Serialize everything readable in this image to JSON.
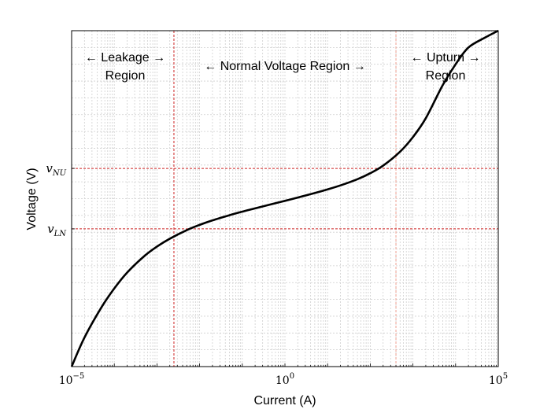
{
  "chart_data": {
    "type": "line",
    "title": "",
    "xlabel": "Current (A)",
    "ylabel": "Voltage (V)",
    "x_scale": "log",
    "xlim": [
      1e-05,
      100000
    ],
    "x_ticks": [
      {
        "value": 1e-05,
        "base": "10",
        "exp": "−5"
      },
      {
        "value": 1,
        "base": "10",
        "exp": "0"
      },
      {
        "value": 100000,
        "base": "10",
        "exp": "5"
      }
    ],
    "ylim": [
      0,
      1
    ],
    "y_ticks": [
      {
        "value": 0.59,
        "sym": "v",
        "sub": "NU"
      },
      {
        "value": 0.41,
        "sym": "v",
        "sub": "LN"
      }
    ],
    "grid": true,
    "series": [
      {
        "x": [
          1e-05,
          2e-05,
          5e-05,
          0.0001,
          0.0002,
          0.0005,
          0.001,
          0.002,
          0.005,
          0.01,
          0.02,
          0.05,
          0.1,
          0.2,
          0.5,
          1,
          2,
          5,
          10,
          20,
          50,
          100,
          200,
          500,
          1000,
          2000,
          5000,
          10000,
          20000,
          50000,
          100000
        ],
        "y": [
          0.0,
          0.0865,
          0.1764,
          0.2327,
          0.2799,
          0.3285,
          0.3572,
          0.3807,
          0.4062,
          0.4219,
          0.4353,
          0.4506,
          0.4612,
          0.4711,
          0.484,
          0.4934,
          0.5033,
          0.5167,
          0.5276,
          0.5394,
          0.5579,
          0.5757,
          0.5981,
          0.6398,
          0.6832,
          0.7393,
          0.838,
          0.9,
          0.95,
          0.98,
          1.0
        ]
      }
    ],
    "reference_lines": [
      {
        "axis": "x",
        "value": 0.0025,
        "color": "#cc2222"
      },
      {
        "axis": "x",
        "value": 400,
        "color": "#f0a090"
      },
      {
        "axis": "y",
        "value": 0.59,
        "color": "#cc2222"
      },
      {
        "axis": "y",
        "value": 0.41,
        "color": "#cc2222"
      }
    ],
    "annotations": {
      "leakage": {
        "line1": "← Leakage →",
        "line2": "Region"
      },
      "normal": {
        "line1": "← Normal Voltage Region →"
      },
      "upturn": {
        "line1": "← Upturn →",
        "line2": "Region"
      }
    },
    "colors": {
      "curve": "#000000",
      "grid": "#cfcfcf",
      "frame": "#000000"
    }
  }
}
